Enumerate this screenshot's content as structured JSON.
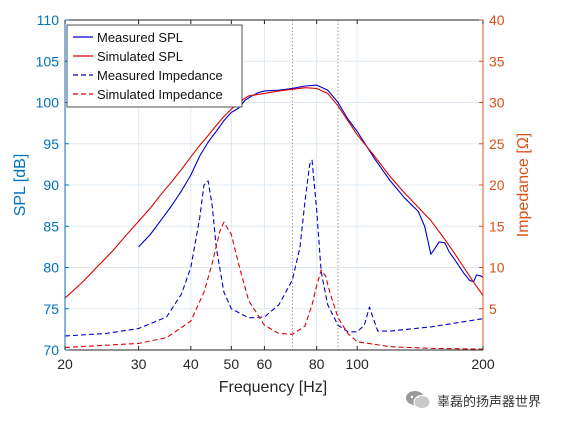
{
  "chart_data": {
    "type": "line",
    "xlabel": "Frequency [Hz]",
    "ylabel_left": "SPL [dB]",
    "ylabel_right": "Impedance [Ω]",
    "xscale": "log",
    "xlim": [
      20,
      200
    ],
    "ylim_left": [
      70,
      110
    ],
    "ylim_right": [
      0,
      40
    ],
    "x_ticks": [
      20,
      30,
      40,
      50,
      60,
      80,
      100,
      200
    ],
    "x_tick_labels": [
      "20",
      "30",
      "40",
      "50",
      "60",
      "80",
      "100",
      "200"
    ],
    "y_ticks_left": [
      70,
      75,
      80,
      85,
      90,
      95,
      100,
      105,
      110
    ],
    "y_ticks_right": [
      5,
      10,
      15,
      20,
      25,
      30,
      35,
      40
    ],
    "grid": true,
    "dotted_vlines": [
      70,
      90
    ],
    "legend_position": "top-left",
    "series": [
      {
        "name": "Measured SPL",
        "axis": "left",
        "color": "#0000cc",
        "dash": "solid",
        "points": [
          [
            30,
            82.5
          ],
          [
            32,
            84.0
          ],
          [
            34,
            85.8
          ],
          [
            36,
            87.5
          ],
          [
            38,
            89.3
          ],
          [
            40,
            91.2
          ],
          [
            42,
            93.5
          ],
          [
            44,
            95.2
          ],
          [
            46,
            96.5
          ],
          [
            48,
            97.8
          ],
          [
            50,
            98.8
          ],
          [
            52,
            99.3
          ],
          [
            54,
            100.3
          ],
          [
            56,
            100.8
          ],
          [
            58,
            101.2
          ],
          [
            60,
            101.4
          ],
          [
            65,
            101.5
          ],
          [
            70,
            101.7
          ],
          [
            75,
            102.0
          ],
          [
            80,
            102.1
          ],
          [
            85,
            101.5
          ],
          [
            90,
            100.0
          ],
          [
            95,
            98.0
          ],
          [
            100,
            96.5
          ],
          [
            110,
            93.2
          ],
          [
            120,
            90.5
          ],
          [
            130,
            88.4
          ],
          [
            140,
            86.8
          ],
          [
            145,
            85.0
          ],
          [
            148,
            83.0
          ],
          [
            150,
            81.6
          ],
          [
            153,
            82.2
          ],
          [
            157,
            83.1
          ],
          [
            162,
            83.0
          ],
          [
            166,
            81.9
          ],
          [
            172,
            80.8
          ],
          [
            180,
            79.3
          ],
          [
            186,
            78.4
          ],
          [
            190,
            78.3
          ],
          [
            193,
            79.1
          ],
          [
            197,
            79.0
          ],
          [
            200,
            78.8
          ]
        ]
      },
      {
        "name": "Simulated SPL",
        "axis": "left",
        "color": "#dd0000",
        "dash": "solid",
        "points": [
          [
            20,
            76.3
          ],
          [
            22,
            78.2
          ],
          [
            24,
            80.2
          ],
          [
            26,
            82.0
          ],
          [
            28,
            83.9
          ],
          [
            30,
            85.6
          ],
          [
            32,
            87.2
          ],
          [
            34,
            88.9
          ],
          [
            36,
            90.4
          ],
          [
            38,
            91.9
          ],
          [
            40,
            93.4
          ],
          [
            42,
            94.8
          ],
          [
            44,
            96.0
          ],
          [
            46,
            97.2
          ],
          [
            48,
            98.3
          ],
          [
            50,
            99.2
          ],
          [
            52,
            100.0
          ],
          [
            55,
            100.8
          ],
          [
            60,
            101.1
          ],
          [
            65,
            101.4
          ],
          [
            70,
            101.6
          ],
          [
            75,
            101.8
          ],
          [
            80,
            101.7
          ],
          [
            85,
            101.1
          ],
          [
            90,
            99.6
          ],
          [
            95,
            97.8
          ],
          [
            100,
            96.1
          ],
          [
            110,
            93.5
          ],
          [
            120,
            91.0
          ],
          [
            130,
            89.0
          ],
          [
            140,
            87.3
          ],
          [
            150,
            85.7
          ],
          [
            160,
            83.8
          ],
          [
            170,
            81.9
          ],
          [
            180,
            80.0
          ],
          [
            190,
            78.2
          ],
          [
            200,
            76.6
          ]
        ]
      },
      {
        "name": "Measured Impedance",
        "axis": "right",
        "color": "#0000cc",
        "dash": "dashed",
        "points": [
          [
            20,
            1.7
          ],
          [
            25,
            2.0
          ],
          [
            30,
            2.6
          ],
          [
            35,
            4.0
          ],
          [
            38,
            6.8
          ],
          [
            40,
            10.0
          ],
          [
            42,
            16.0
          ],
          [
            43,
            20.0
          ],
          [
            44,
            20.5
          ],
          [
            45,
            17.5
          ],
          [
            46,
            12.5
          ],
          [
            48,
            7.0
          ],
          [
            50,
            5.0
          ],
          [
            55,
            3.9
          ],
          [
            60,
            4.0
          ],
          [
            65,
            5.5
          ],
          [
            70,
            8.5
          ],
          [
            73,
            12.5
          ],
          [
            75,
            18.0
          ],
          [
            77,
            22.5
          ],
          [
            78,
            23.0
          ],
          [
            80,
            17.0
          ],
          [
            82,
            9.5
          ],
          [
            85,
            5.5
          ],
          [
            90,
            3.0
          ],
          [
            95,
            2.2
          ],
          [
            100,
            2.2
          ],
          [
            104,
            3.0
          ],
          [
            107,
            5.2
          ],
          [
            109,
            4.0
          ],
          [
            112,
            2.3
          ],
          [
            120,
            2.3
          ],
          [
            150,
            2.8
          ],
          [
            200,
            3.8
          ]
        ]
      },
      {
        "name": "Simulated Impedance",
        "axis": "right",
        "color": "#dd0000",
        "dash": "dashed",
        "points": [
          [
            20,
            0.3
          ],
          [
            30,
            0.8
          ],
          [
            35,
            1.5
          ],
          [
            40,
            3.5
          ],
          [
            43,
            7.0
          ],
          [
            45,
            10.5
          ],
          [
            47,
            14.5
          ],
          [
            48,
            15.5
          ],
          [
            50,
            14.0
          ],
          [
            52,
            10.5
          ],
          [
            55,
            6.0
          ],
          [
            60,
            3.0
          ],
          [
            65,
            2.0
          ],
          [
            70,
            1.9
          ],
          [
            75,
            2.9
          ],
          [
            78,
            5.5
          ],
          [
            80,
            7.8
          ],
          [
            82,
            9.7
          ],
          [
            84,
            9.0
          ],
          [
            86,
            7.0
          ],
          [
            90,
            3.9
          ],
          [
            95,
            2.0
          ],
          [
            100,
            1.0
          ],
          [
            120,
            0.4
          ],
          [
            150,
            0.2
          ],
          [
            200,
            0.1
          ]
        ]
      }
    ]
  },
  "watermark": {
    "text": "辜磊的扬声器世界"
  },
  "colors": {
    "left_axis": "#0072bd",
    "right_axis": "#d95319",
    "grid": "#dfe8f0",
    "dotted_line": "#909090"
  }
}
